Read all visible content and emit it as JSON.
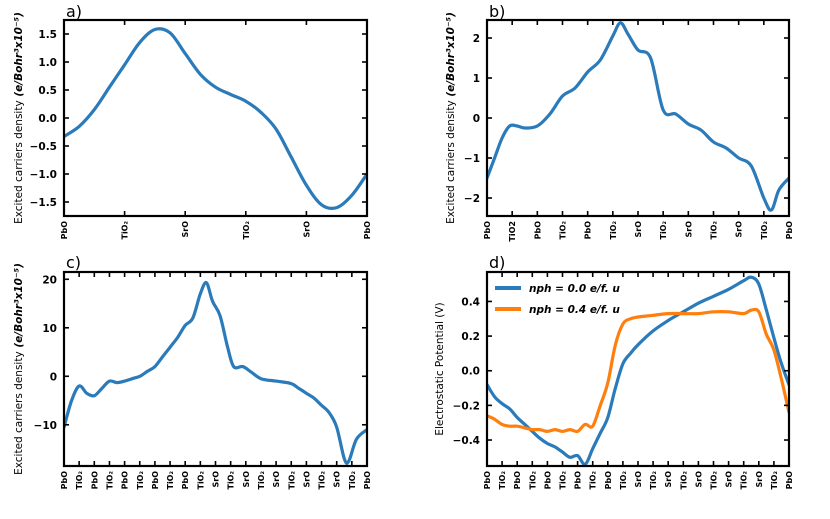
{
  "chart_data": [
    {
      "id": "a",
      "panel_label": "a)",
      "type": "line",
      "ylabel": "Excited carriers density",
      "ylabel_unit": "(e/Bohr³x10⁻⁵)",
      "ylim": [
        -1.75,
        1.75
      ],
      "yticks": [
        -1.5,
        -1.0,
        -0.5,
        0.0,
        0.5,
        1.0,
        1.5
      ],
      "ytick_labels": [
        "−1.5",
        "−1.0",
        "−0.5",
        "0.0",
        "0.5",
        "1.0",
        "1.5"
      ],
      "xlim": [
        0,
        10
      ],
      "xticks": [
        0,
        2,
        4,
        6,
        8,
        10
      ],
      "xtick_labels": [
        "PbO",
        "TiO₂",
        "SrO",
        "TiO₂",
        "SrO",
        "PbO"
      ],
      "series": [
        {
          "name": "",
          "color": "#2b7bba",
          "x": [
            0,
            0.5,
            1.0,
            1.5,
            2.0,
            2.5,
            3.0,
            3.5,
            4.0,
            4.5,
            5.0,
            5.5,
            6.0,
            6.5,
            7.0,
            7.5,
            8.0,
            8.5,
            9.0,
            9.5,
            10
          ],
          "y": [
            -0.33,
            -0.15,
            0.15,
            0.55,
            0.95,
            1.35,
            1.58,
            1.52,
            1.15,
            0.78,
            0.55,
            0.42,
            0.3,
            0.1,
            -0.2,
            -0.7,
            -1.2,
            -1.55,
            -1.6,
            -1.38,
            -1.0
          ]
        }
      ]
    },
    {
      "id": "b",
      "panel_label": "b)",
      "type": "line",
      "ylabel": "Excited carriers density",
      "ylabel_unit": "(e/Bohr³x10⁻⁵)",
      "ylim": [
        -2.45,
        2.45
      ],
      "yticks": [
        -2,
        -1,
        0,
        1,
        2
      ],
      "ytick_labels": [
        "−2",
        "−1",
        "0",
        "1",
        "2"
      ],
      "xlim": [
        0,
        12
      ],
      "xticks": [
        0,
        1,
        2,
        3,
        4,
        5,
        6,
        7,
        8,
        9,
        10,
        11,
        12
      ],
      "xtick_labels": [
        "PbO",
        "TiO2",
        "PbO",
        "TiO₂",
        "PbO",
        "TiO₂",
        "SrO",
        "TiO₂",
        "SrO",
        "TiO₂",
        "SrO",
        "TiO₂",
        "PbO"
      ],
      "series": [
        {
          "name": "",
          "color": "#2b7bba",
          "x": [
            0,
            0.3,
            0.6,
            0.9,
            1.2,
            1.5,
            2.0,
            2.5,
            3.0,
            3.5,
            4.0,
            4.5,
            5.0,
            5.3,
            5.6,
            6.0,
            6.5,
            7.0,
            7.5,
            8.0,
            8.5,
            9.0,
            9.5,
            10.0,
            10.5,
            11.0,
            11.3,
            11.6,
            12
          ],
          "y": [
            -1.5,
            -1.0,
            -0.5,
            -0.2,
            -0.2,
            -0.25,
            -0.2,
            0.1,
            0.55,
            0.75,
            1.15,
            1.45,
            2.05,
            2.38,
            2.1,
            1.7,
            1.5,
            0.2,
            0.1,
            -0.15,
            -0.3,
            -0.6,
            -0.75,
            -1.0,
            -1.2,
            -2.0,
            -2.3,
            -1.8,
            -1.5
          ]
        }
      ]
    },
    {
      "id": "c",
      "panel_label": "c)",
      "type": "line",
      "ylabel": "Excited carriers density",
      "ylabel_unit": "(e/Bohr³x10⁻⁵)",
      "ylim": [
        -18.5,
        21.5
      ],
      "yticks": [
        -10,
        0,
        10,
        20
      ],
      "ytick_labels": [
        "−10",
        "0",
        "10",
        "20"
      ],
      "xlim": [
        0,
        20
      ],
      "xticks": [
        0,
        1,
        2,
        3,
        4,
        5,
        6,
        7,
        8,
        9,
        10,
        11,
        12,
        13,
        14,
        15,
        16,
        17,
        18,
        19,
        20
      ],
      "xtick_labels": [
        "PbO",
        "TiO₂",
        "PbO",
        "TiO₂",
        "PbO",
        "TiO₂",
        "PbO",
        "TiO₂",
        "PbO",
        "TiO₂",
        "SrO",
        "TiO₂",
        "SrO",
        "TiO₂",
        "SrO",
        "TiO₂",
        "SrO",
        "TiO₂",
        "SrO",
        "TiO₂",
        "PbO"
      ],
      "series": [
        {
          "name": "",
          "color": "#2b7bba",
          "x": [
            0,
            0.5,
            1.0,
            1.5,
            2.0,
            2.5,
            3.0,
            3.5,
            4.0,
            4.5,
            5.0,
            5.5,
            6.0,
            6.5,
            7.0,
            7.5,
            8.0,
            8.5,
            9.0,
            9.4,
            9.8,
            10.3,
            10.8,
            11.2,
            11.8,
            12.3,
            13.0,
            14.0,
            15.0,
            15.5,
            16.0,
            16.5,
            17.0,
            17.5,
            18.0,
            18.5,
            18.8,
            19.3,
            20
          ],
          "y": [
            -10.5,
            -5.0,
            -2.0,
            -3.5,
            -4.0,
            -2.5,
            -1.0,
            -1.3,
            -1.0,
            -0.5,
            0.0,
            1.0,
            2.0,
            4.0,
            6.0,
            8.0,
            10.5,
            12.0,
            17.0,
            19.3,
            15.5,
            12.5,
            6.0,
            2.0,
            2.0,
            1.0,
            -0.5,
            -1.0,
            -1.5,
            -2.5,
            -3.5,
            -4.5,
            -6.0,
            -7.5,
            -10.5,
            -17.0,
            -17.5,
            -13.0,
            -11.0
          ]
        }
      ]
    },
    {
      "id": "d",
      "panel_label": "d)",
      "type": "line",
      "ylabel": "Electrostatic Potential (V)",
      "ylim": [
        -0.55,
        0.57
      ],
      "yticks": [
        -0.4,
        -0.2,
        0.0,
        0.2,
        0.4
      ],
      "ytick_labels": [
        "−0.4",
        "−0.2",
        "0.0",
        "0.2",
        "0.4"
      ],
      "xlim": [
        0,
        20
      ],
      "xticks": [
        0,
        1,
        2,
        3,
        4,
        5,
        6,
        7,
        8,
        9,
        10,
        11,
        12,
        13,
        14,
        15,
        16,
        17,
        18,
        19,
        20
      ],
      "xtick_labels": [
        "PbO",
        "TiO₂",
        "PbO",
        "TiO₂",
        "PbO",
        "TiO₂",
        "PbO",
        "TiO₂",
        "PbO",
        "TiO₂",
        "SrO",
        "TiO₂",
        "SrO",
        "TiO₂",
        "SrO",
        "TiO₂",
        "SrO",
        "TiO₂",
        "SrO",
        "TiO₂",
        "PbO"
      ],
      "legend_position": "upper-left",
      "series": [
        {
          "name": "n_ph = 0.0 e/f.u",
          "legend_label": "nph = 0.0 e/f. u",
          "color": "#2b7bba",
          "x": [
            0,
            0.5,
            1.0,
            1.5,
            2.0,
            2.5,
            3.0,
            3.5,
            4.0,
            4.5,
            5.0,
            5.5,
            6.0,
            6.5,
            7.0,
            7.5,
            8.0,
            8.5,
            9.0,
            9.5,
            10.0,
            11.0,
            12.0,
            13.0,
            14.0,
            15.0,
            16.0,
            17.0,
            17.5,
            18.0,
            18.5,
            19.0,
            19.5,
            20
          ],
          "y": [
            -0.08,
            -0.15,
            -0.19,
            -0.22,
            -0.27,
            -0.31,
            -0.35,
            -0.39,
            -0.42,
            -0.44,
            -0.47,
            -0.5,
            -0.49,
            -0.54,
            -0.45,
            -0.36,
            -0.27,
            -0.1,
            0.04,
            0.1,
            0.15,
            0.23,
            0.29,
            0.34,
            0.39,
            0.43,
            0.47,
            0.52,
            0.54,
            0.5,
            0.35,
            0.19,
            0.04,
            -0.08
          ]
        },
        {
          "name": "n_ph = 0.4 e/f.u",
          "legend_label": "nph = 0.4 e/f. u",
          "color": "#ff7f0e",
          "x": [
            0,
            0.5,
            1.0,
            1.5,
            2.0,
            2.5,
            3.0,
            3.5,
            4.0,
            4.5,
            5.0,
            5.5,
            6.0,
            6.5,
            7.0,
            7.5,
            8.0,
            8.5,
            9.0,
            9.5,
            10.0,
            11.0,
            12.0,
            13.0,
            14.0,
            15.0,
            16.0,
            17.0,
            17.5,
            18.0,
            18.5,
            19.0,
            19.5,
            20
          ],
          "y": [
            -0.26,
            -0.28,
            -0.31,
            -0.32,
            -0.32,
            -0.33,
            -0.34,
            -0.34,
            -0.35,
            -0.34,
            -0.35,
            -0.34,
            -0.35,
            -0.31,
            -0.32,
            -0.2,
            -0.07,
            0.15,
            0.27,
            0.3,
            0.31,
            0.32,
            0.33,
            0.33,
            0.33,
            0.34,
            0.34,
            0.33,
            0.35,
            0.34,
            0.21,
            0.12,
            -0.05,
            -0.24
          ]
        }
      ]
    }
  ]
}
